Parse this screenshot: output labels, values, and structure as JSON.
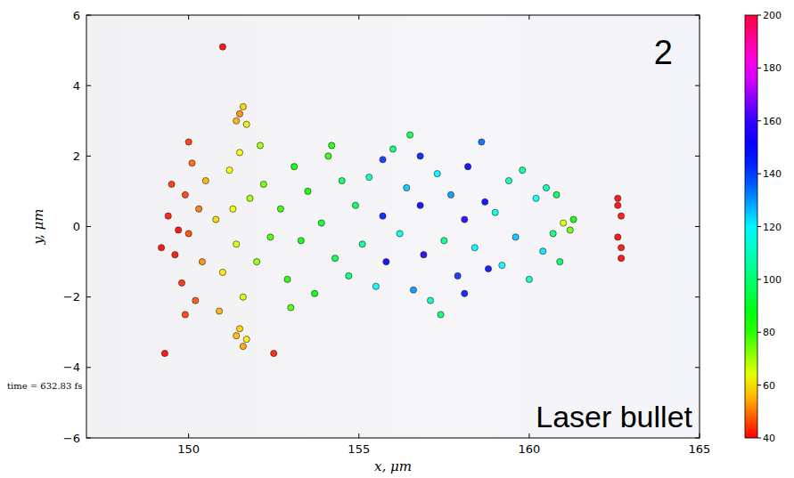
{
  "chart_data": {
    "type": "scatter",
    "x_label": "x, μm",
    "y_label": "y, μm",
    "annotations": [
      "2",
      "Laser bullet",
      "time =  632.83 fs"
    ],
    "xlim": [
      147,
      165
    ],
    "ylim": [
      -6,
      6
    ],
    "xticks": [
      150,
      155,
      160,
      165
    ],
    "yticks": [
      {
        "value": -6,
        "label": "−6"
      },
      {
        "value": -4,
        "label": "−4"
      },
      {
        "value": -2,
        "label": "−2"
      },
      0,
      2,
      4,
      6
    ],
    "marker": "circle",
    "grid": false,
    "colorbar_range": [
      40,
      200
    ],
    "colorbar_ticks": [
      40,
      60,
      80,
      100,
      120,
      140,
      160,
      180,
      200
    ],
    "x": [
      149.4,
      149.6,
      149.5,
      149.8,
      149.9,
      150.0,
      150.1,
      150.2,
      150.3,
      149.7,
      150.4,
      150.0,
      149.9,
      149.2,
      150.5,
      150.8,
      151.0,
      151.2,
      151.4,
      151.5,
      151.6,
      151.8,
      152.0,
      152.2,
      152.4,
      150.9,
      152.1,
      151.3,
      151.4,
      151.6,
      151.5,
      151.7,
      151.4,
      151.6,
      151.5,
      151.7,
      151.0,
      149.3,
      152.5,
      152.7,
      152.9,
      153.1,
      153.3,
      153.5,
      153.7,
      153.9,
      154.1,
      154.3,
      154.5,
      154.7,
      154.9,
      153.0,
      154.2,
      155.1,
      155.3,
      155.5,
      155.7,
      155.8,
      155.7,
      156.0,
      156.2,
      156.4,
      156.6,
      156.8,
      156.9,
      156.8,
      157.1,
      157.3,
      157.5,
      157.7,
      157.9,
      158.1,
      158.2,
      158.1,
      158.4,
      158.6,
      158.7,
      158.8,
      156.5,
      157.4,
      159.0,
      159.2,
      159.4,
      159.6,
      159.8,
      160.0,
      160.2,
      160.4,
      160.5,
      160.7,
      160.8,
      160.9,
      161.0,
      161.2,
      161.3,
      162.6,
      162.7,
      162.6,
      162.7,
      162.6,
      162.7
    ],
    "values": [
      0.3,
      -0.8,
      1.2,
      -1.6,
      0.9,
      -0.2,
      1.8,
      -2.1,
      0.5,
      -0.1,
      -1.0,
      2.4,
      -2.5,
      -0.6,
      1.3,
      0.2,
      -1.3,
      1.6,
      -0.5,
      2.1,
      -2.0,
      0.8,
      -1.0,
      1.2,
      -0.3,
      -2.4,
      2.3,
      0.5,
      3.0,
      3.4,
      3.2,
      2.9,
      -3.1,
      -3.4,
      -2.9,
      -3.2,
      5.1,
      -3.6,
      -3.6,
      0.5,
      -1.5,
      1.7,
      -0.4,
      1.0,
      -1.9,
      0.1,
      2.0,
      -0.9,
      1.3,
      -1.4,
      0.6,
      -2.3,
      2.3,
      -0.5,
      1.4,
      -1.7,
      0.3,
      -1.0,
      1.9,
      2.2,
      -0.2,
      1.1,
      -1.8,
      0.6,
      -0.8,
      2.0,
      -2.1,
      1.5,
      -0.4,
      0.9,
      -1.4,
      0.2,
      1.7,
      -1.9,
      -0.6,
      2.4,
      0.7,
      -1.2,
      2.6,
      -2.5,
      0.4,
      -1.1,
      1.3,
      -0.3,
      1.6,
      -1.5,
      0.8,
      -0.7,
      1.1,
      -0.2,
      0.9,
      -1.0,
      0.1,
      -0.1,
      0.2,
      0.6,
      0.3,
      -0.3,
      -0.6,
      0.8,
      -0.9
    ],
    "color_values": [
      42,
      41,
      44,
      43,
      45,
      46,
      48,
      47,
      50,
      40,
      52,
      44,
      45,
      40,
      55,
      58,
      60,
      62,
      65,
      63,
      66,
      70,
      72,
      75,
      78,
      55,
      70,
      62,
      55,
      58,
      52,
      60,
      56,
      54,
      58,
      60,
      40,
      40,
      42,
      80,
      82,
      85,
      88,
      84,
      86,
      92,
      80,
      95,
      98,
      100,
      96,
      78,
      82,
      105,
      110,
      120,
      145,
      150,
      140,
      100,
      115,
      125,
      130,
      150,
      155,
      145,
      110,
      120,
      105,
      130,
      140,
      155,
      150,
      145,
      120,
      135,
      150,
      148,
      95,
      100,
      115,
      120,
      110,
      125,
      105,
      112,
      118,
      122,
      108,
      100,
      95,
      98,
      65,
      75,
      85,
      40,
      41,
      40,
      41,
      40,
      40
    ]
  }
}
